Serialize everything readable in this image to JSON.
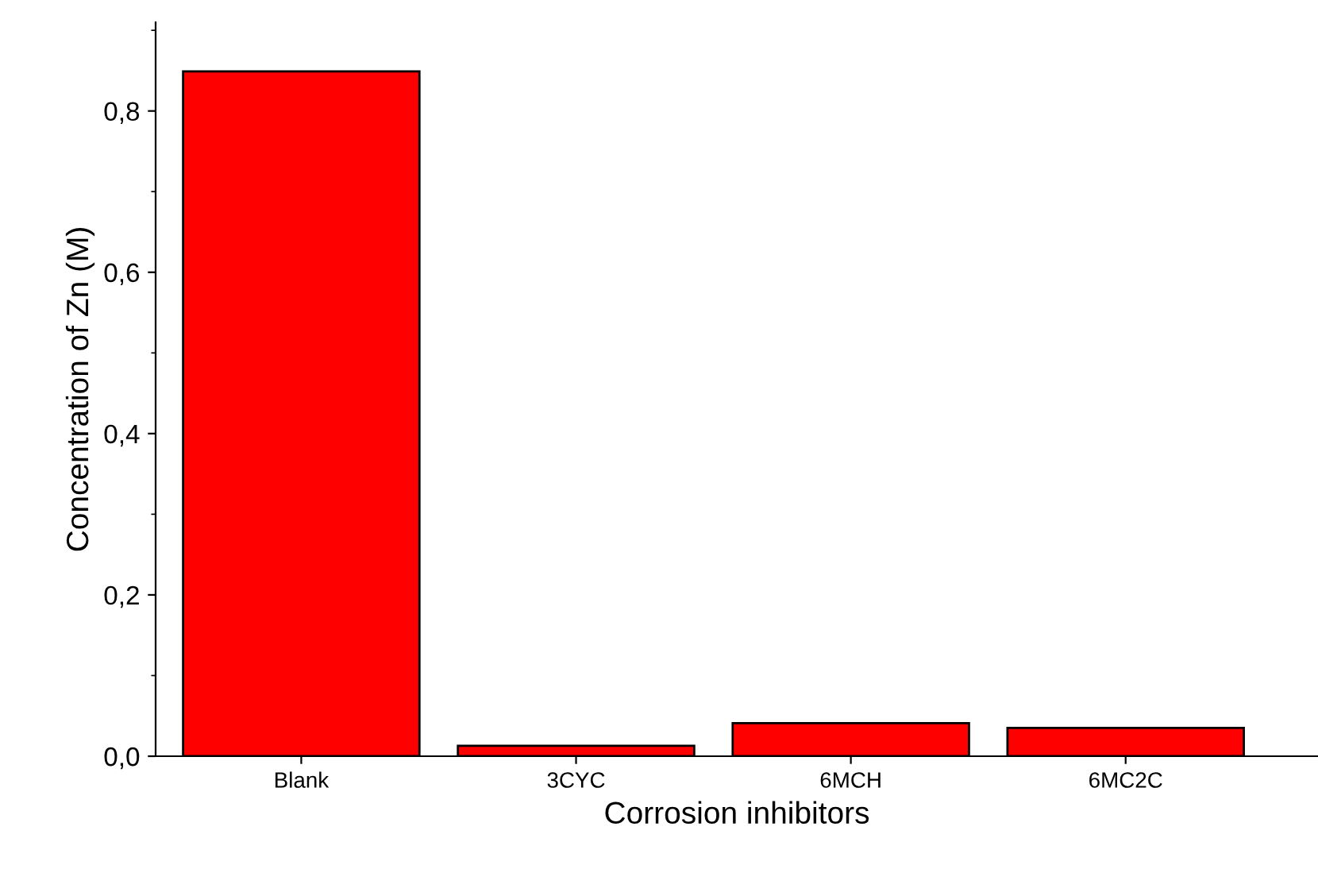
{
  "chart_data": {
    "type": "bar",
    "xlabel": "Corrosion inhibitors",
    "ylabel": "Concentration of Zn (M)",
    "categories": [
      "Blank",
      "3CYC",
      "6MCH",
      "6MC2C"
    ],
    "values": [
      0.849,
      0.013,
      0.041,
      0.035
    ],
    "color": "#ff0000",
    "ylim": [
      0,
      0.91
    ],
    "yticks": [
      {
        "value": 0,
        "label": "0,0"
      },
      {
        "value": 0.2,
        "label": "0,2"
      },
      {
        "value": 0.4,
        "label": "0,4"
      },
      {
        "value": 0.6,
        "label": "0,6"
      },
      {
        "value": 0.8,
        "label": "0,8"
      }
    ],
    "grid": false,
    "legend": false
  }
}
